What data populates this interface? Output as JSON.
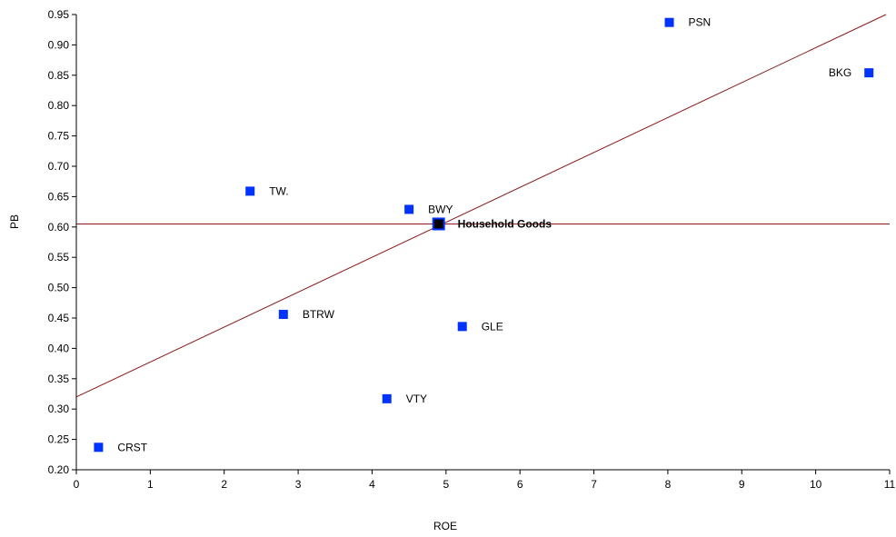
{
  "chart_data": {
    "type": "scatter",
    "title": "",
    "xlabel": "ROE",
    "ylabel": "PB",
    "xlim": [
      0,
      11
    ],
    "ylim": [
      0.2,
      0.95
    ],
    "x_ticks": [
      0,
      1,
      2,
      3,
      4,
      5,
      6,
      7,
      8,
      9,
      10,
      11
    ],
    "y_ticks": [
      0.2,
      0.25,
      0.3,
      0.35,
      0.4,
      0.45,
      0.5,
      0.55,
      0.6,
      0.65,
      0.7,
      0.75,
      0.8,
      0.85,
      0.9,
      0.95
    ],
    "y_tick_labels": [
      "0.20",
      "0.25",
      "0.30",
      "0.35",
      "0.40",
      "0.45",
      "0.50",
      "0.55",
      "0.60",
      "0.65",
      "0.70",
      "0.75",
      "0.80",
      "0.85",
      "0.90",
      "0.95"
    ],
    "grid": false,
    "points": [
      {
        "label": "CRST",
        "x": 0.3,
        "y": 0.237,
        "color": "#0033ff",
        "label_side": "right"
      },
      {
        "label": "TW.",
        "x": 2.35,
        "y": 0.659,
        "color": "#0033ff",
        "label_side": "right"
      },
      {
        "label": "BTRW",
        "x": 2.8,
        "y": 0.456,
        "color": "#0033ff",
        "label_side": "right"
      },
      {
        "label": "VTY",
        "x": 4.2,
        "y": 0.317,
        "color": "#0033ff",
        "label_side": "right"
      },
      {
        "label": "BWY",
        "x": 4.5,
        "y": 0.629,
        "color": "#0033ff",
        "label_side": "right"
      },
      {
        "label": "GLE",
        "x": 5.22,
        "y": 0.436,
        "color": "#0033ff",
        "label_side": "right"
      },
      {
        "label": "PSN",
        "x": 8.02,
        "y": 0.937,
        "color": "#0033ff",
        "label_side": "right"
      },
      {
        "label": "BKG",
        "x": 10.72,
        "y": 0.854,
        "color": "#0033ff",
        "label_side": "left"
      },
      {
        "label": "Household Goods",
        "x": 4.9,
        "y": 0.605,
        "color": "#000000",
        "label_side": "right",
        "highlight": true
      }
    ],
    "reference_lines": [
      {
        "type": "trend",
        "x": [
          0,
          10.95
        ],
        "y": [
          0.32,
          0.95
        ],
        "color": "#8b1a1a"
      },
      {
        "type": "horizontal",
        "y": 0.605,
        "color": "#8b1a1a"
      }
    ]
  }
}
